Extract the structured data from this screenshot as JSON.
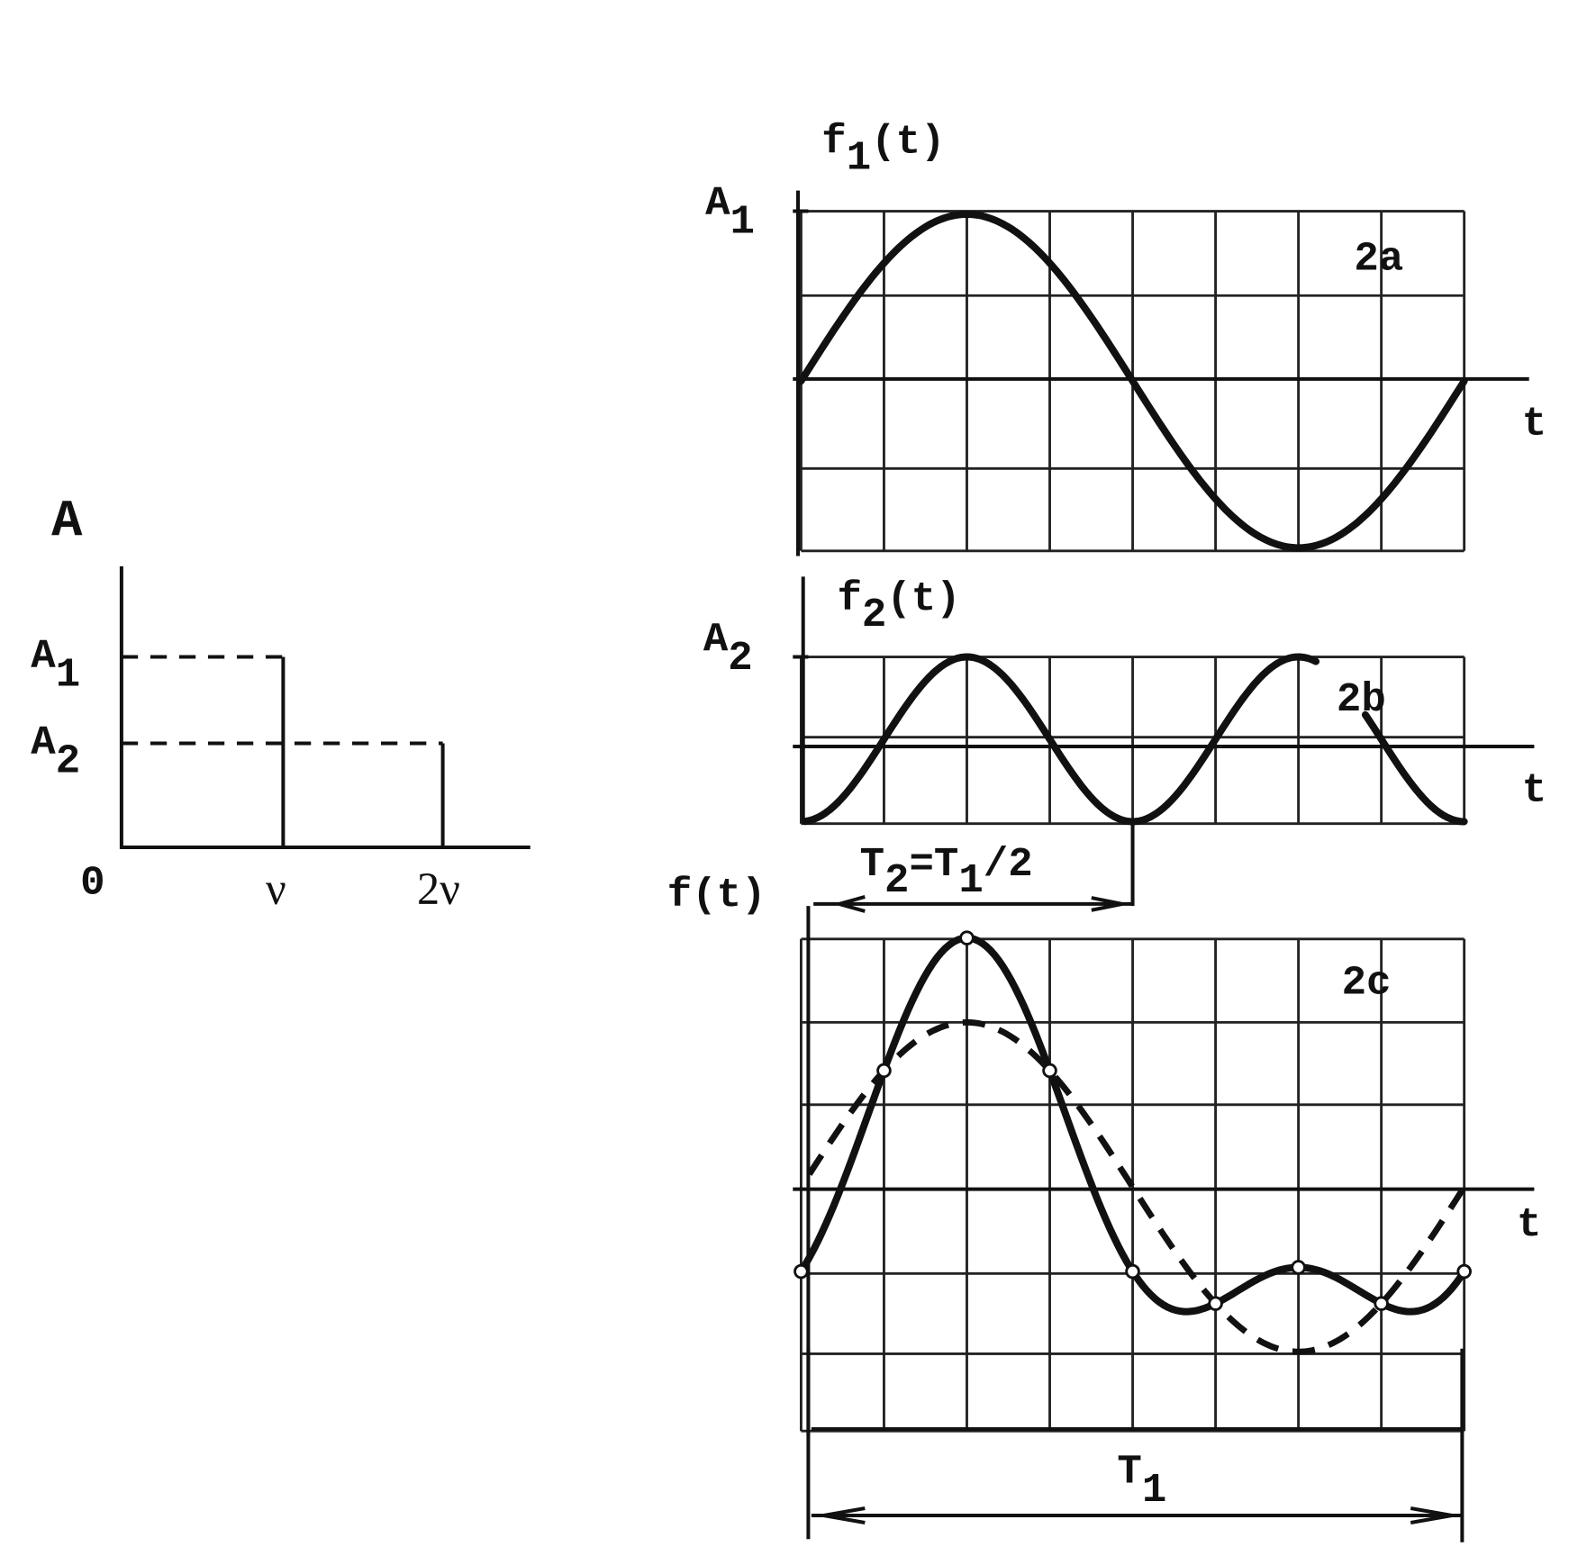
{
  "spectrum": {
    "y_label": "A",
    "levels": [
      {
        "main": "A",
        "sub": "1"
      },
      {
        "main": "A",
        "sub": "2"
      }
    ],
    "x_labels": [
      "0",
      "ν",
      "2ν"
    ]
  },
  "panels": [
    {
      "func": {
        "main": "f",
        "sub": "1",
        "rest": "(t)"
      },
      "amplitude": {
        "main": "A",
        "sub": "1"
      },
      "label": "2a",
      "axis": "t"
    },
    {
      "func": {
        "main": "f",
        "sub": "2",
        "rest": "(t)"
      },
      "amplitude": {
        "main": "A",
        "sub": "2"
      },
      "label": "2b",
      "axis": "t"
    },
    {
      "func": {
        "main": "f",
        "rest": "(t)"
      },
      "label": "2c",
      "axis": "t"
    }
  ],
  "period_half": [
    "T",
    "2",
    "=T",
    "1",
    "/2"
  ],
  "period_full": {
    "main": "T",
    "sub": "1"
  }
}
